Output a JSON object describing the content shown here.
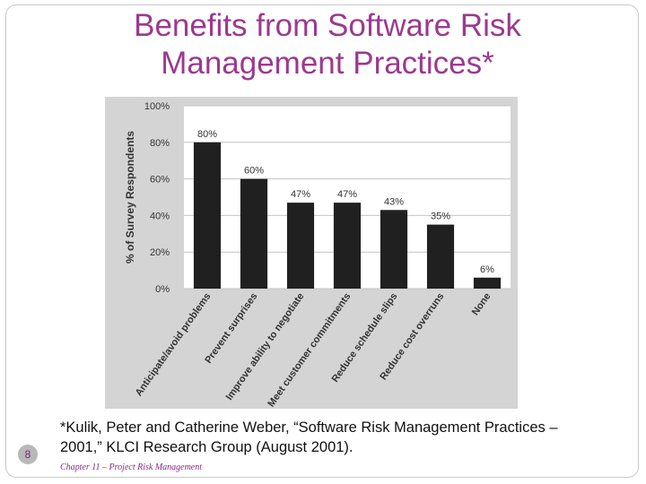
{
  "slide": {
    "title_line1": "Benefits from Software Risk",
    "title_line2": "Management Practices*",
    "number": "8",
    "citation_line1": "*Kulik, Peter and Catherine Weber, “Software Risk Management Practices –",
    "citation_line2": "2001,” KLCI Research Group (August 2001).",
    "footer": "Chapter 11 – Project Risk Management"
  },
  "chart_data": {
    "type": "bar",
    "title": "",
    "xlabel": "",
    "ylabel": "% of Survey Respondents",
    "ylim": [
      0,
      100
    ],
    "yticks": [
      0,
      20,
      40,
      60,
      80,
      100
    ],
    "ytick_labels": [
      "0%",
      "20%",
      "40%",
      "60%",
      "80%",
      "100%"
    ],
    "grid": true,
    "categories": [
      "Anticipate/avoid problems",
      "Prevent surprises",
      "Improve ability to negotiate",
      "Meet customer commitments",
      "Reduce schedule slips",
      "Reduce cost overruns",
      "None"
    ],
    "values": [
      80,
      60,
      47,
      47,
      43,
      35,
      6
    ],
    "value_labels": [
      "80%",
      "60%",
      "47%",
      "47%",
      "43%",
      "35%",
      "6%"
    ],
    "colors": {
      "bar": "#202020",
      "plot_bg": "#ffffff",
      "panel_bg": "#d4d4d4",
      "grid": "#c4c4c4"
    }
  }
}
